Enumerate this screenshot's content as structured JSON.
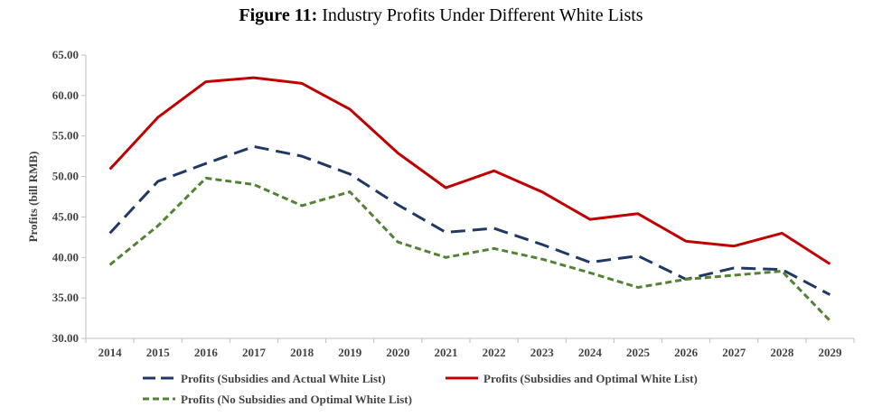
{
  "figure": {
    "number": "Figure 11:",
    "caption": "Industry Profits Under Different White Lists"
  },
  "chart_data": {
    "type": "line",
    "title": "Figure 11: Industry Profits Under Different White Lists",
    "xlabel": "",
    "ylabel": "Profits (bill RMB)",
    "ylim": [
      30,
      65
    ],
    "yticks": [
      "30.00",
      "35.00",
      "40.00",
      "45.00",
      "50.00",
      "55.00",
      "60.00",
      "65.00"
    ],
    "grid": false,
    "legend_position": "bottom",
    "x": [
      "2014",
      "2015",
      "2016",
      "2017",
      "2018",
      "2019",
      "2020",
      "2021",
      "2022",
      "2023",
      "2024",
      "2025",
      "2026",
      "2027",
      "2028",
      "2029"
    ],
    "series": [
      {
        "name": "Profits (Subsidies and Actual White List)",
        "color": "#1f3864",
        "style": "long-dash",
        "values": [
          43.0,
          49.4,
          51.6,
          53.7,
          52.5,
          50.3,
          46.5,
          43.1,
          43.6,
          41.6,
          39.4,
          40.2,
          37.3,
          38.7,
          38.5,
          35.4
        ]
      },
      {
        "name": "Profits (Subsidies and Optimal White List)",
        "color": "#c00000",
        "style": "solid",
        "values": [
          50.9,
          57.3,
          61.7,
          62.2,
          61.5,
          58.3,
          52.9,
          48.6,
          50.7,
          48.1,
          44.7,
          45.4,
          42.0,
          41.4,
          43.0,
          39.2
        ]
      },
      {
        "name": "Profits (No Subsidies and Optimal White List)",
        "color": "#548235",
        "style": "short-dash",
        "values": [
          39.1,
          43.9,
          49.8,
          49.0,
          46.4,
          48.1,
          41.9,
          40.0,
          41.1,
          39.8,
          38.1,
          36.3,
          37.3,
          37.8,
          38.3,
          32.2
        ]
      }
    ]
  }
}
